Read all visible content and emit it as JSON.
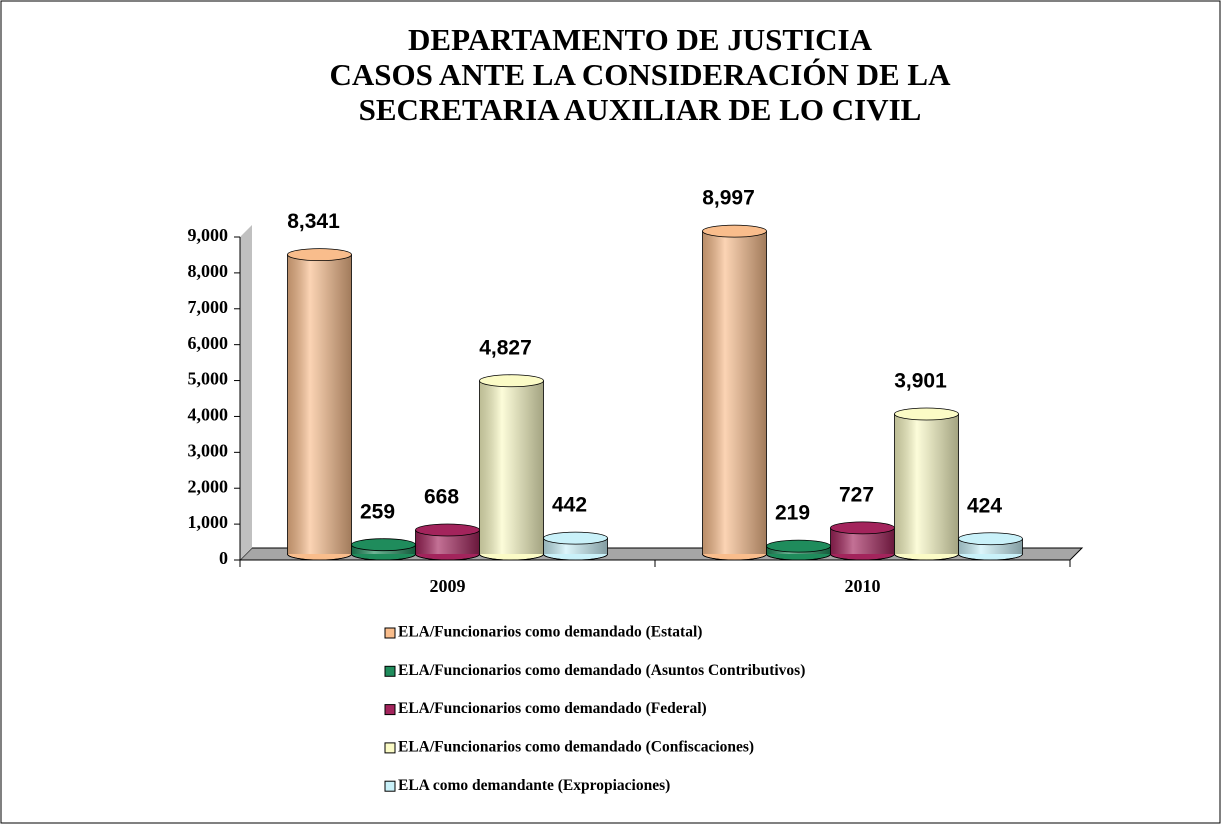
{
  "chart_data": {
    "type": "bar3d",
    "title": [
      "DEPARTAMENTO DE JUSTICIA",
      "CASOS ANTE LA CONSIDERACIÓN DE LA",
      "SECRETARIA AUXILIAR DE LO CIVIL"
    ],
    "categories": [
      "2009",
      "2010"
    ],
    "series": [
      {
        "name": "ELA/Funcionarios como demandado (Estatal)",
        "color": "#f9bd8c",
        "values": [
          8341,
          8997
        ],
        "value_labels": [
          "8,341",
          "8,997"
        ]
      },
      {
        "name": "ELA/Funcionarios como demandado (Asuntos Contributivos)",
        "color": "#1f8c5c",
        "values": [
          259,
          219
        ]
      },
      {
        "name": "ELA/Funcionarios como demandado (Federal)",
        "color": "#a3245c",
        "values": [
          668,
          727
        ]
      },
      {
        "name": "ELA/Funcionarios como demandado (Confiscaciones)",
        "color": "#fbfbc6",
        "values": [
          4827,
          3901
        ],
        "value_labels": [
          "4,827",
          "3,901"
        ]
      },
      {
        "name": "ELA como demandante (Expropiaciones)",
        "color": "#c9f1f9",
        "values": [
          442,
          424
        ]
      }
    ],
    "ylim": [
      0,
      9000
    ],
    "yticks": [
      0,
      {
        "value": 1000,
        "label": "1,000"
      },
      {
        "value": 2000,
        "label": "2,000"
      },
      {
        "value": 3000,
        "label": "3,000"
      },
      {
        "value": 4000,
        "label": "4,000"
      },
      {
        "value": 5000,
        "label": "5,000"
      },
      {
        "value": 6000,
        "label": "6,000"
      },
      {
        "value": 7000,
        "label": "7,000"
      },
      {
        "value": 8000,
        "label": "8,000"
      },
      {
        "value": 9000,
        "label": "9,000"
      }
    ],
    "legend": "bottom"
  }
}
